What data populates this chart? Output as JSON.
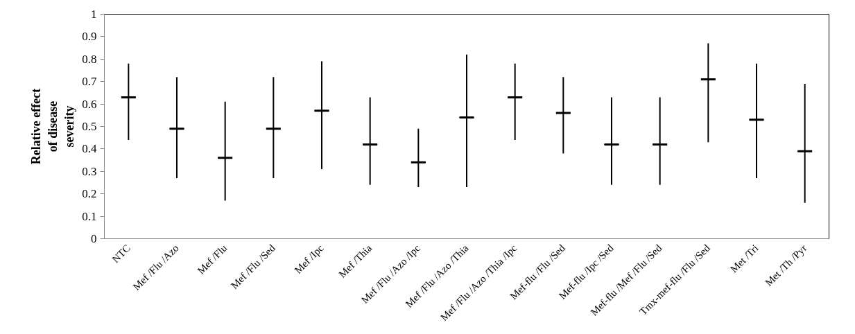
{
  "chart_data": {
    "type": "box",
    "ylabel": "Relative effect\nof disease\nseverity",
    "categories": [
      "NTC",
      "Mef /Flu /Azo",
      "Mef /Flu",
      "Mef /Flu /Sed",
      "Mef /Ipc",
      "Mef /Thia",
      "Mef /Flu /Azo /Ipc",
      "Mef /Flu /Azo /Thia",
      "Mef /Flu /Azo /Thia /Ipc",
      "Mef-flu /Flu /Sed",
      "Mef-flu /Ipc /Sed",
      "Mef-flu /Mef /Flu /Sed",
      "Tmx-mef-flu /Flu /Sed",
      "Met /Tri",
      "Met /Th /Pyr"
    ],
    "boxes": [
      {
        "low": 0.44,
        "q1": 0.63,
        "median": 0.63,
        "q3": 0.63,
        "high": 0.78
      },
      {
        "low": 0.27,
        "q1": 0.49,
        "median": 0.49,
        "q3": 0.49,
        "high": 0.72
      },
      {
        "low": 0.17,
        "q1": 0.36,
        "median": 0.36,
        "q3": 0.36,
        "high": 0.61
      },
      {
        "low": 0.27,
        "q1": 0.49,
        "median": 0.49,
        "q3": 0.49,
        "high": 0.72
      },
      {
        "low": 0.31,
        "q1": 0.57,
        "median": 0.57,
        "q3": 0.57,
        "high": 0.79
      },
      {
        "low": 0.24,
        "q1": 0.42,
        "median": 0.42,
        "q3": 0.42,
        "high": 0.63
      },
      {
        "low": 0.23,
        "q1": 0.34,
        "median": 0.34,
        "q3": 0.34,
        "high": 0.49
      },
      {
        "low": 0.23,
        "q1": 0.54,
        "median": 0.54,
        "q3": 0.54,
        "high": 0.82
      },
      {
        "low": 0.44,
        "q1": 0.63,
        "median": 0.63,
        "q3": 0.63,
        "high": 0.78
      },
      {
        "low": 0.38,
        "q1": 0.56,
        "median": 0.56,
        "q3": 0.56,
        "high": 0.72
      },
      {
        "low": 0.24,
        "q1": 0.42,
        "median": 0.42,
        "q3": 0.42,
        "high": 0.63
      },
      {
        "low": 0.24,
        "q1": 0.42,
        "median": 0.42,
        "q3": 0.42,
        "high": 0.63
      },
      {
        "low": 0.43,
        "q1": 0.71,
        "median": 0.71,
        "q3": 0.71,
        "high": 0.87
      },
      {
        "low": 0.27,
        "q1": 0.53,
        "median": 0.53,
        "q3": 0.53,
        "high": 0.78
      },
      {
        "low": 0.16,
        "q1": 0.39,
        "median": 0.39,
        "q3": 0.39,
        "high": 0.69
      }
    ],
    "color": "#000000",
    "ylim": [
      0,
      1
    ],
    "yticks": [
      0,
      {
        "value": 0.1,
        "label": "0.1"
      },
      {
        "value": 0.2,
        "label": "0.2"
      },
      {
        "value": 0.3,
        "label": "0.3"
      },
      {
        "value": 0.4,
        "label": "0.4"
      },
      {
        "value": 0.5,
        "label": "0.5"
      },
      {
        "value": 0.6,
        "label": "0.6"
      },
      {
        "value": 0.7,
        "label": "0.7"
      },
      {
        "value": 0.8,
        "label": "0.8"
      },
      {
        "value": 0.9,
        "label": "0.9"
      },
      1
    ]
  }
}
